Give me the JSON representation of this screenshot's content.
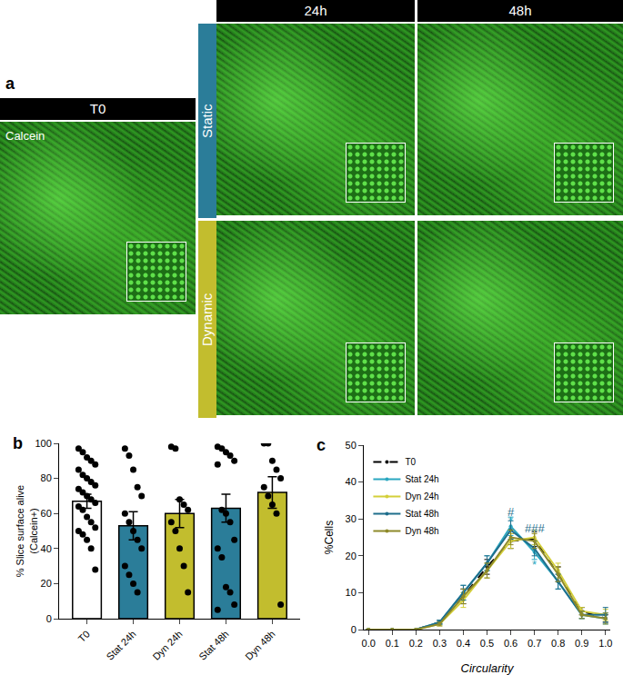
{
  "panel_a": {
    "label": "a",
    "t0_header": "T0",
    "stain": "Calcein",
    "col_headers": [
      "24h",
      "48h"
    ],
    "row_headers": [
      "Static",
      "Dynamic"
    ]
  },
  "chart_data": [
    {
      "type": "bar",
      "title": "b",
      "y_label": "% Slice surface alive\n(Calcein+)",
      "categories": [
        "T0",
        "Stat 24h",
        "Dyn 24h",
        "Stat 48h",
        "Dyn 48h"
      ],
      "values": [
        67,
        53,
        60,
        63,
        72
      ],
      "errors": [
        4,
        8,
        8,
        8,
        9
      ],
      "colors": [
        "#ffffff",
        "#2b7d99",
        "#c2bd2e",
        "#2b7d99",
        "#c2bd2e"
      ],
      "points": [
        [
          97,
          95,
          92,
          90,
          88,
          85,
          82,
          80,
          78,
          76,
          74,
          72,
          70,
          68,
          66,
          64,
          62,
          58,
          55,
          52,
          50,
          48,
          45,
          40,
          28
        ],
        [
          97,
          93,
          85,
          75,
          70,
          60,
          55,
          50,
          45,
          40,
          30,
          25,
          20,
          15
        ],
        [
          98,
          97,
          68,
          65,
          62,
          55,
          50,
          40,
          30,
          15
        ],
        [
          98,
          97,
          95,
          93,
          90,
          88,
          62,
          60,
          55,
          45,
          40,
          35,
          18,
          15,
          8,
          5
        ],
        [
          100,
          100,
          90,
          85,
          80,
          75,
          70,
          65,
          60,
          8
        ]
      ],
      "ylim": [
        0,
        100
      ],
      "yticks": [
        0,
        20,
        40,
        60,
        80,
        100
      ],
      "grid": false
    },
    {
      "type": "line",
      "title": "c",
      "x_label": "Circularity",
      "y_label": "%Cells",
      "x": [
        0,
        0.1,
        0.2,
        0.3,
        0.4,
        0.5,
        0.6,
        0.7,
        0.8,
        0.9,
        1.0
      ],
      "series": [
        {
          "name": "T0",
          "color": "#000000",
          "line_style": "dash",
          "values": [
            0,
            0,
            0,
            2,
            9,
            17,
            24,
            24.5,
            15,
            5,
            3
          ],
          "errors": [
            0,
            0,
            0,
            0.5,
            2,
            2,
            2,
            2,
            2,
            1,
            1
          ]
        },
        {
          "name": "Stat 24h",
          "color": "#2aa7c0",
          "line_style": "solid",
          "values": [
            0,
            0,
            0,
            2,
            10,
            18,
            28,
            21,
            13,
            4,
            3
          ],
          "errors": [
            0,
            0,
            0,
            0.5,
            2,
            2,
            2.5,
            2,
            2,
            1,
            1.5
          ]
        },
        {
          "name": "Dyn 24h",
          "color": "#d4cf3a",
          "line_style": "solid",
          "values": [
            0,
            0,
            0,
            1.5,
            8,
            16,
            24,
            25,
            16,
            5,
            4
          ],
          "errors": [
            0,
            0,
            0,
            0.5,
            2,
            2,
            2,
            2,
            2,
            1,
            1.5
          ]
        },
        {
          "name": "Stat 48h",
          "color": "#1f6e8c",
          "line_style": "solid",
          "values": [
            0,
            0,
            0,
            2,
            10,
            18,
            27,
            22,
            13,
            4,
            4
          ],
          "errors": [
            0,
            0,
            0,
            0.5,
            2,
            2,
            2.5,
            2,
            2,
            1,
            2
          ]
        },
        {
          "name": "Dyn 48h",
          "color": "#8e8a2a",
          "line_style": "solid",
          "values": [
            0,
            0,
            0,
            1.5,
            9,
            16,
            25,
            24,
            15,
            4,
            3
          ],
          "errors": [
            0,
            0,
            0,
            0.5,
            2,
            2,
            2,
            2,
            2,
            1,
            1.5
          ]
        }
      ],
      "annotations": [
        {
          "text": "#",
          "x": 0.6,
          "y": 32,
          "color": "#1f6e8c"
        },
        {
          "text": "*",
          "x": 0.6,
          "y": 29.5,
          "color": "#2aa7c0"
        },
        {
          "text": "###",
          "x": 0.7,
          "y": 27.5,
          "color": "#1f6e8c"
        },
        {
          "text": "*",
          "x": 0.7,
          "y": 17.5,
          "color": "#2aa7c0"
        }
      ],
      "xlim": [
        -0.02,
        1.02
      ],
      "xticks": [
        {
          "value": 0,
          "label": "0.0"
        },
        {
          "value": 0.1,
          "label": "0.1"
        },
        {
          "value": 0.2,
          "label": "0.2"
        },
        {
          "value": 0.3,
          "label": "0.3"
        },
        {
          "value": 0.4,
          "label": "0.4"
        },
        {
          "value": 0.5,
          "label": "0.5"
        },
        {
          "value": 0.6,
          "label": "0.6"
        },
        {
          "value": 0.7,
          "label": "0.7"
        },
        {
          "value": 0.8,
          "label": "0.8"
        },
        {
          "value": 0.9,
          "label": "0.9"
        },
        {
          "value": 1.0,
          "label": "1.0"
        }
      ],
      "ylim": [
        0,
        50
      ],
      "yticks": [
        0,
        10,
        20,
        30,
        40,
        50
      ],
      "grid": false,
      "legend": "upper left"
    }
  ]
}
